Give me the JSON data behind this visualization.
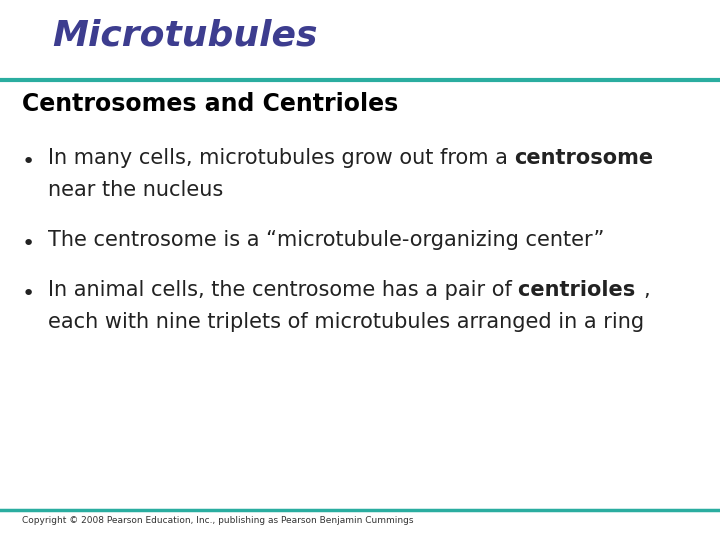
{
  "title": "Microtubules",
  "title_color": "#3d3d8f",
  "title_fontstyle": "italic",
  "title_fontsize": 26,
  "title_fontweight": "bold",
  "separator_color": "#2aada0",
  "subtitle": "Centrosomes and Centrioles",
  "subtitle_fontsize": 17,
  "subtitle_fontweight": "bold",
  "subtitle_color": "#000000",
  "bullet_color": "#222222",
  "bullet_fontsize": 15,
  "bullets": [
    {
      "parts": [
        {
          "text": "In many cells, microtubules grow out from a ",
          "bold": false
        },
        {
          "text": "centrosome",
          "bold": true
        },
        {
          "text": " near the nucleus",
          "bold": false
        }
      ]
    },
    {
      "parts": [
        {
          "text": "The centrosome is a “microtubule-organizing center”",
          "bold": false
        }
      ]
    },
    {
      "parts": [
        {
          "text": "In animal cells, the centrosome has a pair of ",
          "bold": false
        },
        {
          "text": "centrioles",
          "bold": true
        },
        {
          "text": ", each with nine triplets of microtubules arranged in a ring",
          "bold": false
        }
      ]
    }
  ],
  "copyright": "Copyright © 2008 Pearson Education, Inc., publishing as Pearson Benjamin Cummings",
  "copyright_fontsize": 6.5,
  "copyright_color": "#333333",
  "background_color": "#ffffff",
  "fig_width": 7.2,
  "fig_height": 5.4,
  "fig_dpi": 100
}
